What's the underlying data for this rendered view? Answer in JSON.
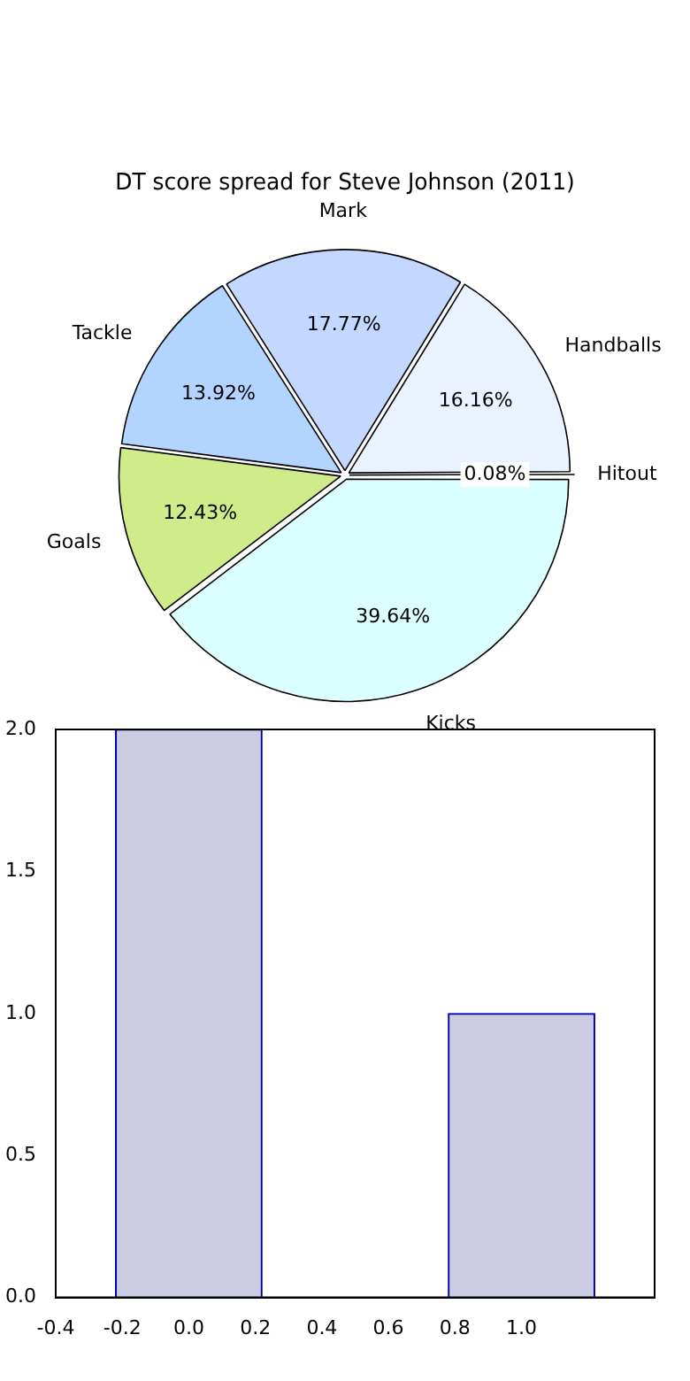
{
  "chart_data": [
    {
      "type": "pie",
      "title": "DT score spread for Steve Johnson (2011)",
      "categories": [
        "Kicks",
        "Goals",
        "Tackle",
        "Mark",
        "Handballs",
        "Hitout"
      ],
      "values": [
        39.64,
        12.43,
        13.92,
        17.77,
        16.16,
        0.08
      ],
      "colors": [
        "#dbffff",
        "#d0eb8a",
        "#b2d4ff",
        "#c4d8ff",
        "#eaf2ff",
        "#e0e0f8"
      ],
      "value_labels": [
        "39.64%",
        "12.43%",
        "13.92%",
        "17.77%",
        "16.16%",
        "0.08%"
      ]
    },
    {
      "type": "bar",
      "x": [
        0,
        1
      ],
      "values": [
        2,
        1
      ],
      "color": "#cbcbe4",
      "xlim": [
        -0.4,
        1.4
      ],
      "xticks": [
        {
          "value": -0.4,
          "label": "-0.4"
        },
        {
          "value": -0.2,
          "label": "-0.2"
        },
        {
          "value": 0,
          "label": "0.0"
        },
        {
          "value": 0.2,
          "label": "0.2"
        },
        {
          "value": 0.4,
          "label": "0.4"
        },
        {
          "value": 0.6,
          "label": "0.6"
        },
        {
          "value": 0.8,
          "label": "0.8"
        },
        {
          "value": 1,
          "label": "1.0"
        }
      ],
      "ylim": [
        0,
        2
      ],
      "yticks": [
        {
          "value": 0,
          "label": "0.0"
        },
        {
          "value": 0.5,
          "label": "0.5"
        },
        {
          "value": 1,
          "label": "1.0"
        },
        {
          "value": 1.5,
          "label": "1.5"
        },
        {
          "value": 2,
          "label": "2.0"
        }
      ]
    }
  ]
}
